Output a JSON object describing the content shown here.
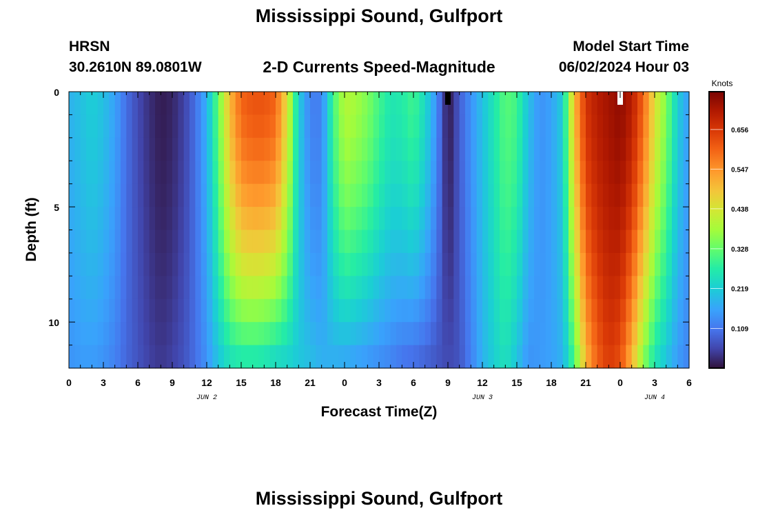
{
  "page": {
    "title": "Mississippi Sound, Gulfport",
    "station_name": "HRSN",
    "station_coords": "30.2610N  89.0801W",
    "subtitle": "2-D Currents Speed-Magnitude",
    "model_label": "Model Start Time",
    "model_time": "06/02/2024 Hour 03",
    "footer_title": "Mississippi Sound, Gulfport"
  },
  "chart_data": {
    "type": "heatmap",
    "title": "2-D Currents Speed-Magnitude",
    "xlabel": "Forecast Time(Z)",
    "ylabel": "Depth (ft)",
    "x_range_hours": [
      0,
      54
    ],
    "x_ticks": [
      {
        "hour": 0,
        "label": "0"
      },
      {
        "hour": 3,
        "label": "3"
      },
      {
        "hour": 6,
        "label": "6"
      },
      {
        "hour": 9,
        "label": "9"
      },
      {
        "hour": 12,
        "label": "12"
      },
      {
        "hour": 15,
        "label": "15"
      },
      {
        "hour": 18,
        "label": "18"
      },
      {
        "hour": 21,
        "label": "21"
      },
      {
        "hour": 24,
        "label": "0"
      },
      {
        "hour": 27,
        "label": "3"
      },
      {
        "hour": 30,
        "label": "6"
      },
      {
        "hour": 33,
        "label": "9"
      },
      {
        "hour": 36,
        "label": "12"
      },
      {
        "hour": 39,
        "label": "15"
      },
      {
        "hour": 42,
        "label": "18"
      },
      {
        "hour": 45,
        "label": "21"
      },
      {
        "hour": 48,
        "label": "0"
      },
      {
        "hour": 51,
        "label": "3"
      },
      {
        "hour": 54,
        "label": "6"
      }
    ],
    "date_labels": [
      {
        "hour": 12,
        "label": "JUN 2"
      },
      {
        "hour": 36,
        "label": "JUN 3"
      },
      {
        "hour": 51,
        "label": "JUN 4"
      }
    ],
    "y_range_ft": [
      0,
      12
    ],
    "y_ticks": [
      {
        "depth": 0,
        "label": "0"
      },
      {
        "depth": 5,
        "label": "5"
      },
      {
        "depth": 10,
        "label": "10"
      }
    ],
    "colorbar": {
      "unit": "Knots",
      "min": 0,
      "max": 0.76,
      "ticks": [
        "0.109",
        "0.219",
        "0.328",
        "0.438",
        "0.547",
        "0.656"
      ]
    },
    "speed_profile_hours": [
      0,
      1,
      2,
      3,
      4,
      5,
      6,
      7,
      8,
      9,
      10,
      11,
      12,
      13,
      14,
      15,
      16,
      17,
      18,
      19,
      20,
      21,
      22,
      23,
      24,
      25,
      26,
      27,
      28,
      29,
      30,
      31,
      32,
      33,
      34,
      35,
      36,
      37,
      38,
      39,
      40,
      41,
      42,
      43,
      44,
      45,
      46,
      47,
      48,
      49,
      50,
      51,
      52,
      53,
      54
    ],
    "surface_speed_knots": [
      0.18,
      0.2,
      0.22,
      0.2,
      0.16,
      0.1,
      0.06,
      0.03,
      0.01,
      0.02,
      0.05,
      0.1,
      0.18,
      0.33,
      0.5,
      0.6,
      0.62,
      0.62,
      0.6,
      0.45,
      0.22,
      0.12,
      0.12,
      0.3,
      0.4,
      0.38,
      0.35,
      0.3,
      0.26,
      0.27,
      0.3,
      0.24,
      0.14,
      0.0,
      0.08,
      0.14,
      0.2,
      0.26,
      0.32,
      0.3,
      0.2,
      0.14,
      0.16,
      0.22,
      0.5,
      0.66,
      0.7,
      0.72,
      0.74,
      0.7,
      0.6,
      0.45,
      0.35,
      0.22,
      0.15
    ],
    "near_bottom_speed_knots": [
      0.14,
      0.15,
      0.15,
      0.14,
      0.12,
      0.09,
      0.07,
      0.05,
      0.04,
      0.05,
      0.07,
      0.1,
      0.14,
      0.2,
      0.24,
      0.25,
      0.25,
      0.24,
      0.22,
      0.22,
      0.21,
      0.2,
      0.18,
      0.17,
      0.16,
      0.15,
      0.14,
      0.13,
      0.12,
      0.1,
      0.09,
      0.08,
      0.07,
      0.06,
      0.07,
      0.12,
      0.18,
      0.22,
      0.25,
      0.2,
      0.14,
      0.15,
      0.16,
      0.18,
      0.3,
      0.5,
      0.6,
      0.65,
      0.62,
      0.5,
      0.35,
      0.25,
      0.2,
      0.15,
      0.12
    ]
  }
}
